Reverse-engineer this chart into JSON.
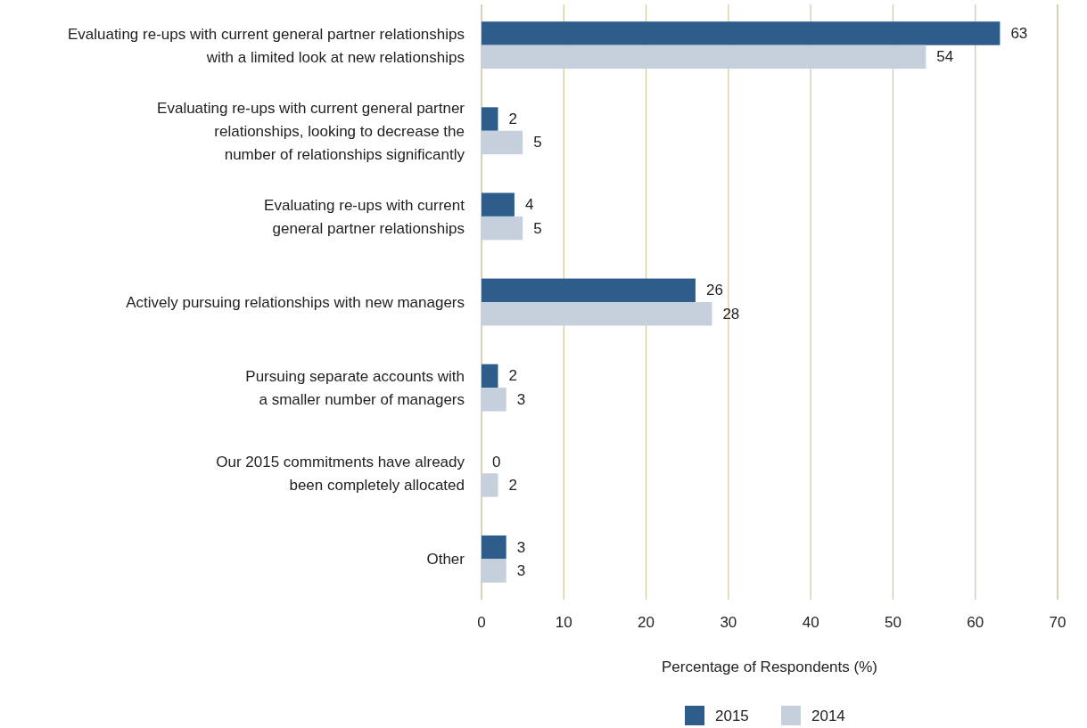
{
  "chart_data": {
    "type": "bar",
    "orientation": "horizontal",
    "categories": [
      "Evaluating re-ups with current general partner relationships\nwith a limited look at new relationships",
      "Evaluating re-ups with current general partner\nrelationships, looking to decrease the\nnumber of relationships significantly",
      "Evaluating re-ups with current\ngeneral partner relationships",
      "Actively pursuing relationships with new managers",
      "Pursuing separate accounts with\na smaller number of managers",
      "Our 2015 commitments have already\nbeen completely allocated",
      "Other"
    ],
    "series": [
      {
        "name": "2015",
        "color": "#2e5d8c",
        "values": [
          63,
          2,
          4,
          26,
          2,
          0,
          3
        ]
      },
      {
        "name": "2014",
        "color": "#c5d0dc",
        "values": [
          54,
          5,
          5,
          28,
          3,
          2,
          3
        ]
      }
    ],
    "xlim": [
      0,
      70
    ],
    "xticks": [
      0,
      10,
      20,
      30,
      40,
      50,
      60,
      70
    ],
    "xlabel": "Percentage of Respondents (%)",
    "grid": "x",
    "legend": "bottom",
    "data_labels": true
  }
}
